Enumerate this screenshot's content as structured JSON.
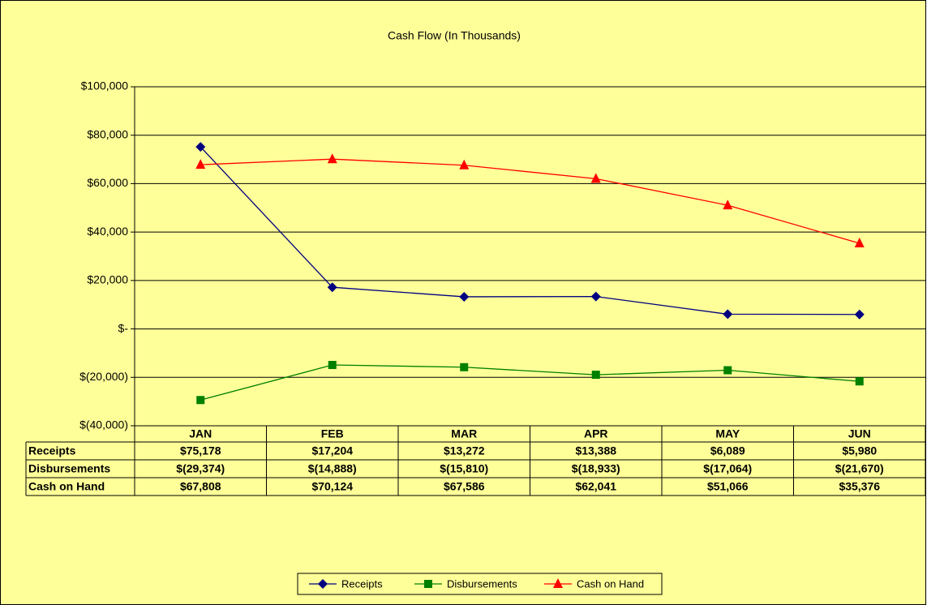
{
  "chart_data": {
    "type": "line",
    "title": "Cash Flow (In Thousands)",
    "categories": [
      "JAN",
      "FEB",
      "MAR",
      "APR",
      "MAY",
      "JUN"
    ],
    "series": [
      {
        "name": "Receipts",
        "color": "#000080",
        "marker": "diamond",
        "values": [
          75178,
          17204,
          13272,
          13388,
          6089,
          5980
        ],
        "value_labels": [
          "$75,178",
          "$17,204",
          "$13,272",
          "$13,388",
          "$6,089",
          "$5,980"
        ]
      },
      {
        "name": "Disbursements",
        "color": "#008000",
        "marker": "square",
        "values": [
          -29374,
          -14888,
          -15810,
          -18933,
          -17064,
          -21670
        ],
        "value_labels": [
          "$(29,374)",
          "$(14,888)",
          "$(15,810)",
          "$(18,933)",
          "$(17,064)",
          "$(21,670)"
        ]
      },
      {
        "name": "Cash on Hand",
        "color": "#ff0000",
        "marker": "triangle",
        "values": [
          67808,
          70124,
          67586,
          62041,
          51066,
          35376
        ],
        "value_labels": [
          "$67,808",
          "$70,124",
          "$67,586",
          "$62,041",
          "$51,066",
          "$35,376"
        ]
      }
    ],
    "ylim": [
      -40000,
      100000
    ],
    "yticks": [
      {
        "value": -40000,
        "label": "$(40,000)"
      },
      {
        "value": -20000,
        "label": "$(20,000)"
      },
      {
        "value": 0,
        "label": "$-"
      },
      {
        "value": 20000,
        "label": "$20,000"
      },
      {
        "value": 40000,
        "label": "$40,000"
      },
      {
        "value": 60000,
        "label": "$60,000"
      },
      {
        "value": 80000,
        "label": "$80,000"
      },
      {
        "value": 100000,
        "label": "$100,000"
      }
    ],
    "grid": true,
    "legend": "bottom"
  }
}
